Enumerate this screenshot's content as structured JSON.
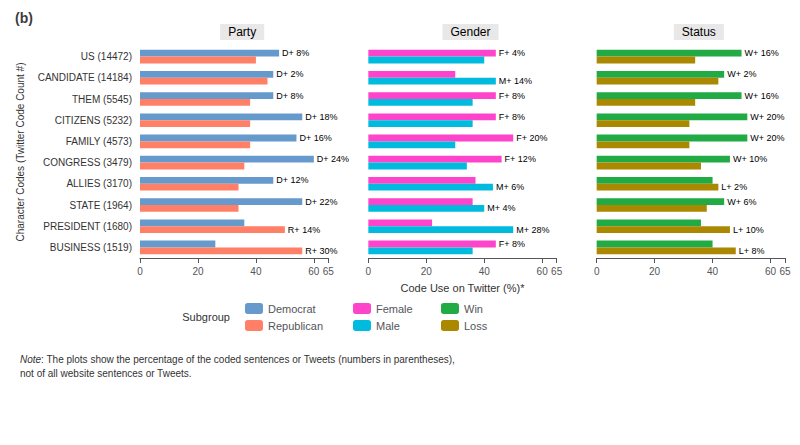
{
  "panel_label": "(b)",
  "xlabel": "Code Use on Twitter (%)*",
  "legend_title": "Subgroup",
  "note_label": "Note",
  "note_text": ": The plots show the percentage of the coded sentences or Tweets (numbers in parentheses),\nnot of all website sentences or Tweets.",
  "chart_data": [
    {
      "type": "bar",
      "orientation": "horizontal",
      "title": "Party",
      "ylabel": "Character Codes (Twitter Code Count #)",
      "categories": [
        "US (14472)",
        "CANDIDATE (14184)",
        "THEM (5545)",
        "CITIZENS (5232)",
        "FAMILY (4573)",
        "CONGRESS (3479)",
        "ALLIES (3170)",
        "STATE (1964)",
        "PRESIDENT (1680)",
        "BUSINESS (1519)"
      ],
      "series": [
        {
          "name": "Democrat",
          "color": "#6699CC",
          "values": [
            48,
            46,
            46,
            56,
            54,
            60,
            46,
            56,
            36,
            26
          ]
        },
        {
          "name": "Republican",
          "color": "#FF8066",
          "values": [
            40,
            44,
            38,
            38,
            38,
            36,
            34,
            34,
            50,
            56
          ]
        }
      ],
      "annotations": [
        "D+ 8%",
        "D+ 2%",
        "D+ 8%",
        "D+ 18%",
        "D+ 16%",
        "D+ 24%",
        "D+ 12%",
        "D+ 22%",
        "R+ 14%",
        "R+ 30%"
      ],
      "xlim": [
        0,
        65
      ],
      "xticks": [
        0,
        20,
        40,
        60
      ],
      "grid": false,
      "legend": "bottom"
    },
    {
      "type": "bar",
      "orientation": "horizontal",
      "title": "Gender",
      "categories": [
        "US (14472)",
        "CANDIDATE (14184)",
        "THEM (5545)",
        "CITIZENS (5232)",
        "FAMILY (4573)",
        "CONGRESS (3479)",
        "ALLIES (3170)",
        "STATE (1964)",
        "PRESIDENT (1680)",
        "BUSINESS (1519)"
      ],
      "series": [
        {
          "name": "Female",
          "color": "#FF44CC",
          "values": [
            44,
            30,
            44,
            44,
            50,
            46,
            37,
            36,
            22,
            44
          ]
        },
        {
          "name": "Male",
          "color": "#00BBDD",
          "values": [
            40,
            44,
            36,
            36,
            30,
            34,
            43,
            40,
            50,
            36
          ]
        }
      ],
      "annotations": [
        "F+ 4%",
        "M+ 14%",
        "F+ 8%",
        "F+ 8%",
        "F+ 20%",
        "F+ 12%",
        "M+ 6%",
        "M+ 4%",
        "M+ 28%",
        "F+ 8%"
      ],
      "xlim": [
        0,
        65
      ],
      "xticks": [
        0,
        20,
        40,
        60
      ],
      "grid": false,
      "legend": "bottom",
      "tick_labels": "x"
    },
    {
      "type": "bar",
      "orientation": "horizontal",
      "title": "Status",
      "categories": [
        "US (14472)",
        "CANDIDATE (14184)",
        "THEM (5545)",
        "CITIZENS (5232)",
        "FAMILY (4573)",
        "CONGRESS (3479)",
        "ALLIES (3170)",
        "STATE (1964)",
        "PRESIDENT (1680)",
        "BUSINESS (1519)"
      ],
      "series": [
        {
          "name": "Win",
          "color": "#22AA44",
          "values": [
            50,
            44,
            50,
            52,
            52,
            46,
            40,
            44,
            36,
            40
          ]
        },
        {
          "name": "Loss",
          "color": "#AA8800",
          "values": [
            34,
            42,
            34,
            32,
            32,
            36,
            42,
            38,
            46,
            48
          ]
        }
      ],
      "annotations": [
        "W+ 16%",
        "W+ 2%",
        "W+ 16%",
        "W+ 20%",
        "W+ 20%",
        "W+ 10%",
        "L+ 2%",
        "W+ 6%",
        "L+ 10%",
        "L+ 8%"
      ],
      "xlim": [
        0,
        65
      ],
      "xticks": [
        0,
        20,
        40,
        60
      ],
      "grid": false,
      "legend": "bottom",
      "tick_labels": "x"
    }
  ]
}
